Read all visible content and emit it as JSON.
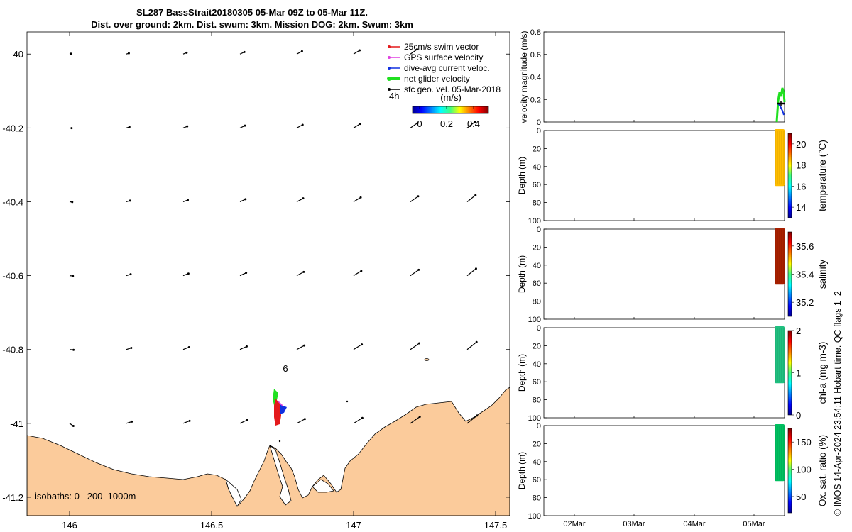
{
  "title": {
    "line1": "SL287 BassStrait20180305 05-Mar 09Z to 05-Mar 11Z.",
    "line2": "Dist. over ground: 2km. Dist. swum: 3km. Mission DOG: 2km. Swum: 3km"
  },
  "colors": {
    "land": "#fbcb9b",
    "swim": "#e41a1c",
    "gps": "#e040e0",
    "dive": "#1030e0",
    "net": "#20e020",
    "sfc": "#000000",
    "oxy": "#00c060"
  },
  "map": {
    "legend": [
      {
        "key": "swim",
        "label": "25cm/s swim vector"
      },
      {
        "key": "gps",
        "label": "GPS surface velocity"
      },
      {
        "key": "dive",
        "label": "dive-avg current veloc."
      },
      {
        "key": "net",
        "label": "net glider velocity"
      },
      {
        "key": "sfc",
        "label": "sfc geo. vel. 05-Mar-2018"
      }
    ],
    "legend_time": "4h",
    "colorbar_title": "(m/s)",
    "colorbar_ticks": [
      "0",
      "0.2",
      "0.4"
    ],
    "xticks": [
      "146",
      "146.5",
      "147",
      "147.5"
    ],
    "yticks": [
      "-40",
      "-40.2",
      "-40.4",
      "-40.6",
      "-40.8",
      "-41",
      "-41.2"
    ],
    "isobaths": "isobaths: 0   200  1000m",
    "annotation": "6"
  },
  "chart_data": [
    {
      "type": "scatter",
      "subtype": "quiver-map",
      "xlim": [
        145.85,
        147.55
      ],
      "ylim": [
        -41.25,
        -39.94
      ],
      "xticks": [
        146,
        146.5,
        147,
        147.5
      ],
      "yticks": [
        -40,
        -40.2,
        -40.4,
        -40.6,
        -40.8,
        -41,
        -41.2
      ],
      "vector_grid_lon": [
        146.0,
        146.2,
        146.4,
        146.6,
        146.8,
        147.0,
        147.2,
        147.4
      ],
      "vector_grid_lat": [
        -40.0,
        -40.2,
        -40.4,
        -40.6,
        -40.8,
        -41.0
      ],
      "annotation": {
        "text": "6",
        "lon": 146.75,
        "lat": -40.86
      }
    },
    {
      "type": "line",
      "ylabel": "velocity magnitude (m/s)",
      "ylim": [
        0,
        0.8
      ],
      "yticks": [
        "0",
        "0.2",
        "0.4",
        "0.6",
        "0.8"
      ]
    },
    {
      "type": "scatter",
      "ylabel": "Depth (m)",
      "colorbar_label": "temperature (°C)",
      "ylim": [
        100,
        0
      ],
      "yticks": [
        "0",
        "20",
        "40",
        "60",
        "80",
        "100"
      ],
      "clim": [
        13,
        21
      ],
      "cticks": [
        "14",
        "16",
        "18",
        "20"
      ]
    },
    {
      "type": "scatter",
      "ylabel": "Depth (m)",
      "colorbar_label": "salinity",
      "ylim": [
        100,
        0
      ],
      "yticks": [
        "0",
        "20",
        "40",
        "60",
        "80",
        "100"
      ],
      "clim": [
        35.1,
        35.7
      ],
      "cticks": [
        "35.2",
        "35.4",
        "35.6"
      ]
    },
    {
      "type": "scatter",
      "ylabel": "Depth (m)",
      "colorbar_label": "chl-a (mg m-3)",
      "ylim": [
        100,
        0
      ],
      "yticks": [
        "0",
        "20",
        "40",
        "60",
        "80",
        "100"
      ],
      "clim": [
        0,
        2
      ],
      "cticks": [
        "0",
        "1",
        "2"
      ]
    },
    {
      "type": "scatter",
      "ylabel": "Depth (m)",
      "colorbar_label": "Ox. sat. ratio (%)",
      "ylim": [
        100,
        0
      ],
      "yticks": [
        "0",
        "20",
        "40",
        "60",
        "80",
        "100"
      ],
      "clim": [
        20,
        175
      ],
      "cticks": [
        "50",
        "100",
        "150"
      ],
      "xticks": [
        "02Mar",
        "03Mar",
        "04Mar",
        "05Mar"
      ]
    }
  ],
  "footer": "© IMOS 14-Apr-2024 23:54:11 Hobart time. QC flags 1  2"
}
